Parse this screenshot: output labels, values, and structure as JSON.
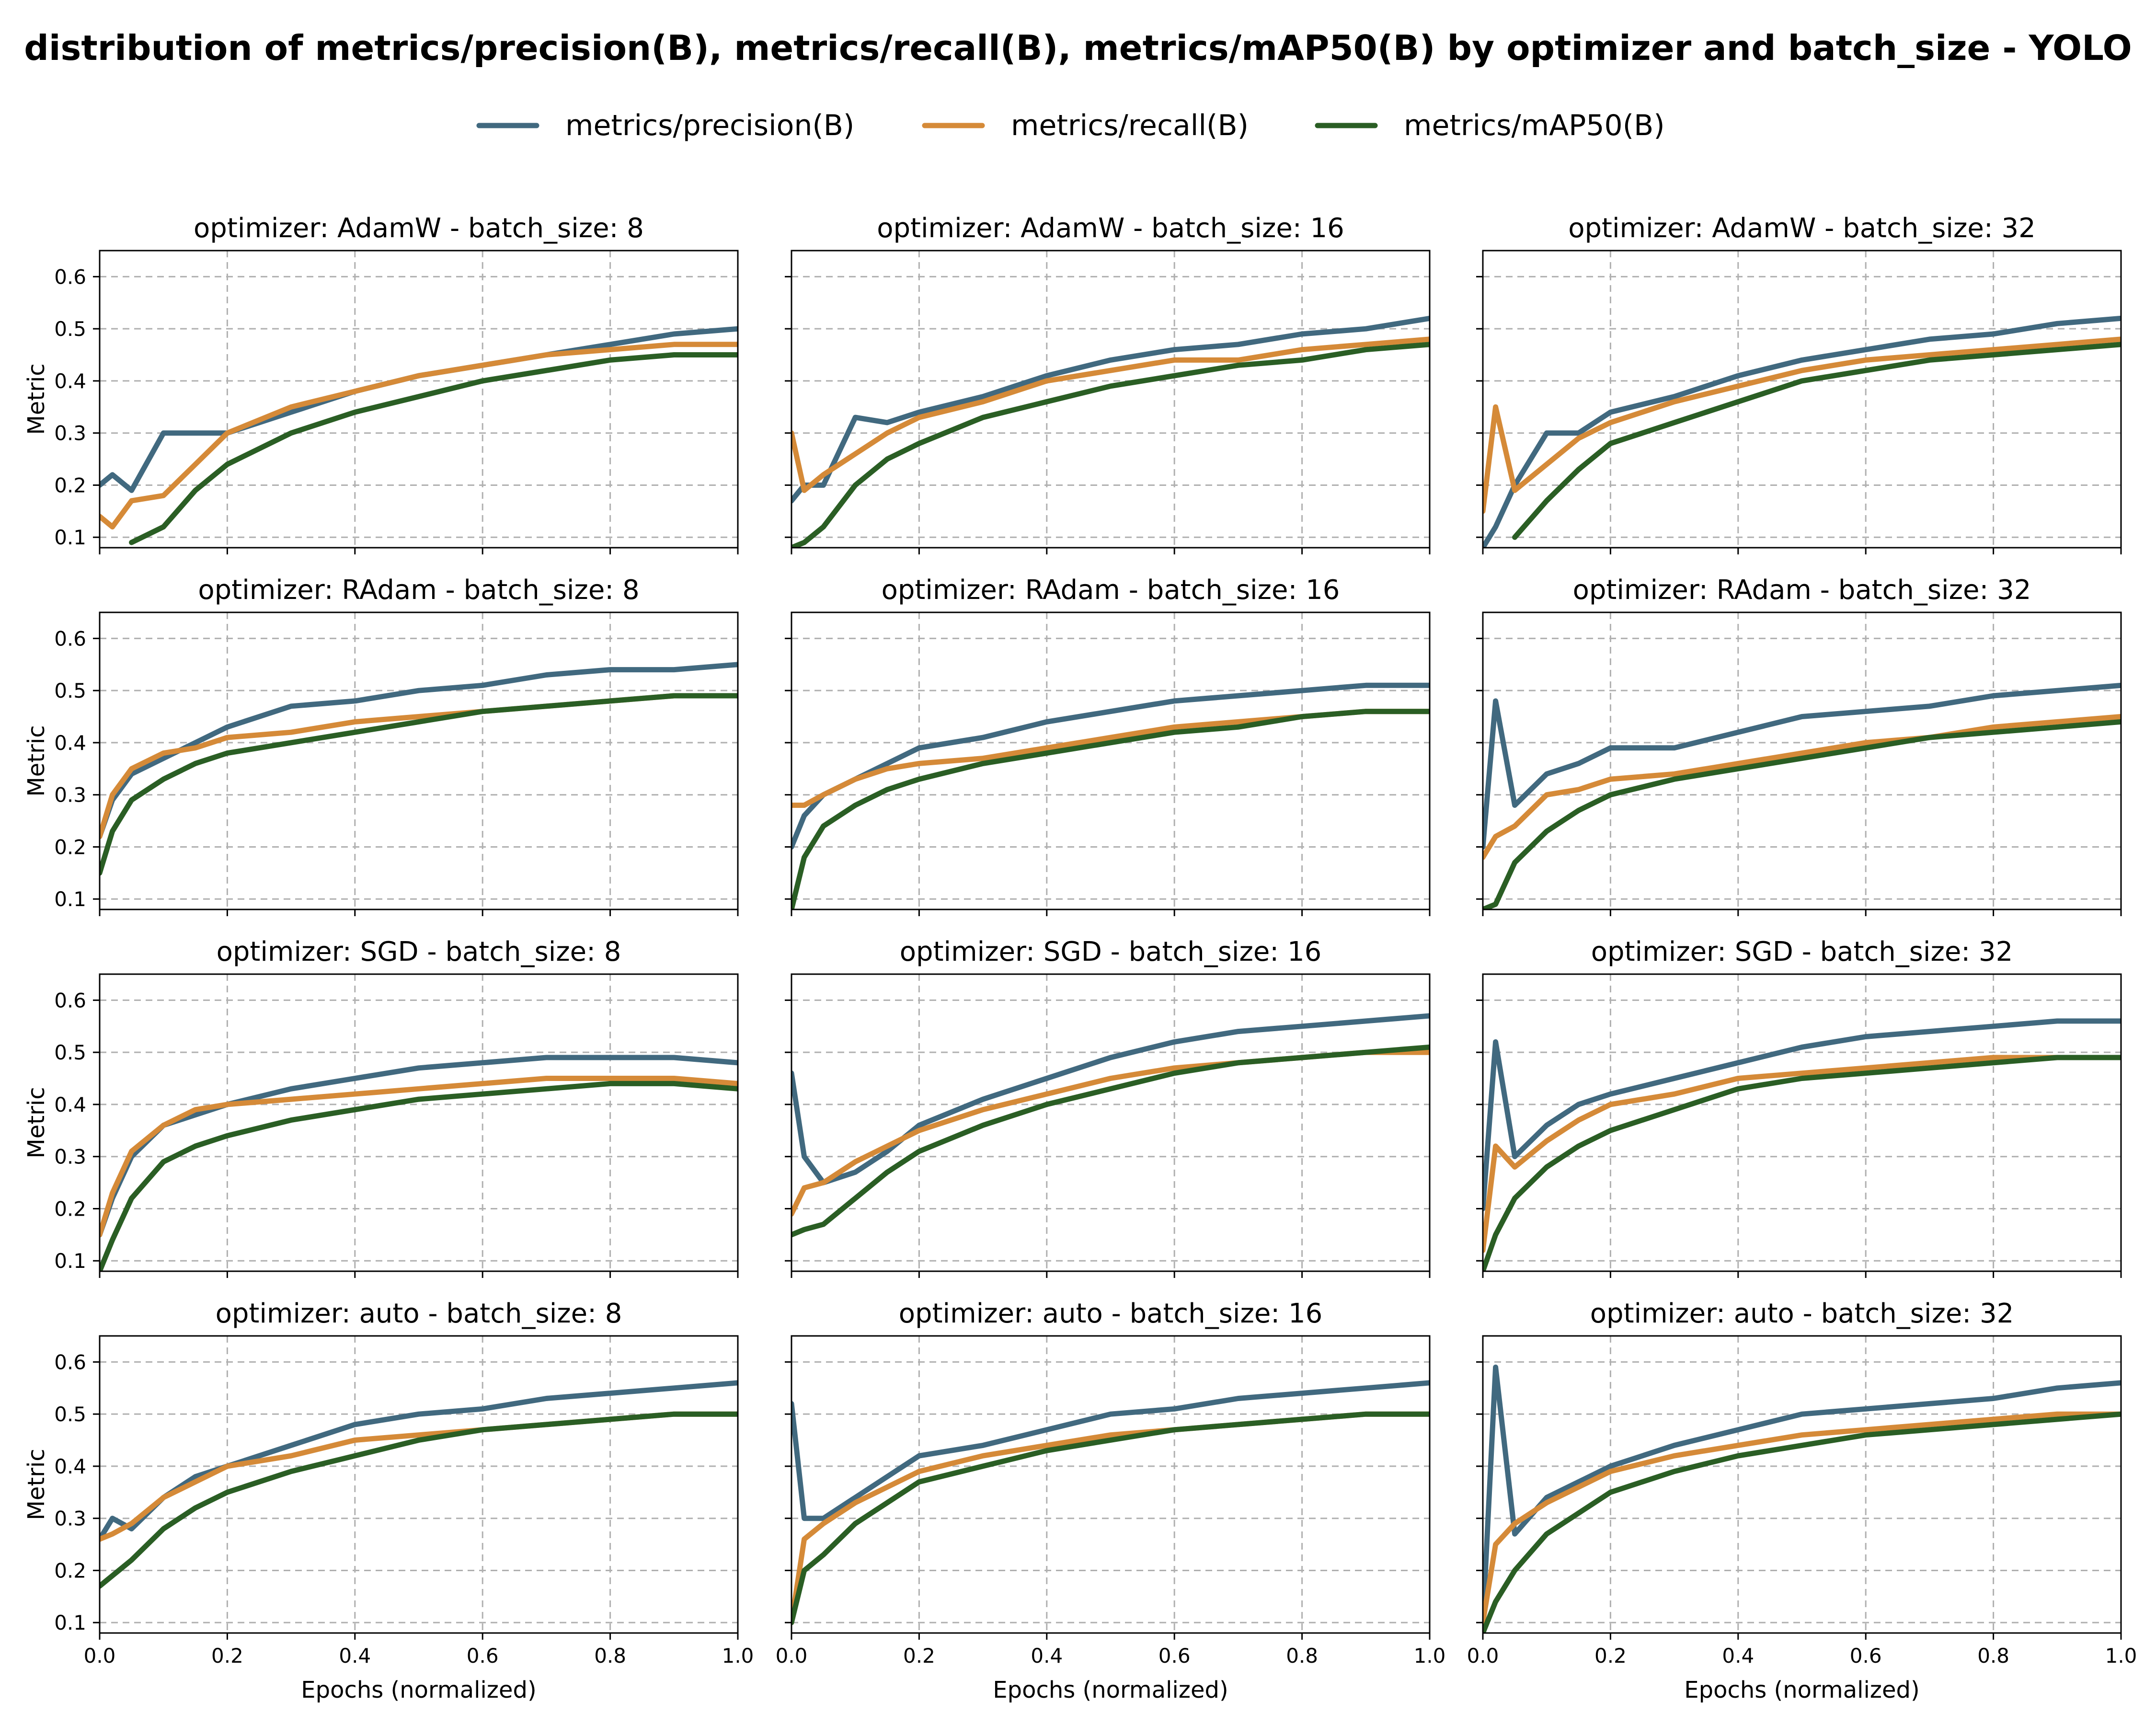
{
  "figure": {
    "title": "distribution of metrics/precision(B), metrics/recall(B), metrics/mAP50(B) by optimizer and batch_size - YOLO"
  },
  "chart_data": {
    "type": "line",
    "title": "distribution of metrics/precision(B), metrics/recall(B), metrics/mAP50(B) by optimizer and batch_size - YOLO",
    "xlabel": "Epochs (normalized)",
    "ylabel": "Metric",
    "xlim": [
      0.0,
      1.0
    ],
    "ylim": [
      0.08,
      0.65
    ],
    "x_ticks": [
      "0.0",
      "0.2",
      "0.4",
      "0.6",
      "0.8",
      "1.0"
    ],
    "y_ticks": [
      "0.1",
      "0.2",
      "0.3",
      "0.4",
      "0.5",
      "0.6"
    ],
    "grid": true,
    "legend_position": "top-center",
    "legend": [
      {
        "name": "metrics/precision(B)",
        "color": "#41697f"
      },
      {
        "name": "metrics/recall(B)",
        "color": "#d58a38"
      },
      {
        "name": "metrics/mAP50(B)",
        "color": "#2a5e24"
      }
    ],
    "x": [
      0.0,
      0.02,
      0.05,
      0.1,
      0.15,
      0.2,
      0.3,
      0.4,
      0.5,
      0.6,
      0.7,
      0.8,
      0.9,
      1.0
    ],
    "panels": [
      {
        "title": "optimizer: AdamW - batch_size: 8",
        "series": [
          {
            "name": "metrics/precision(B)",
            "values": [
              0.2,
              0.22,
              0.19,
              0.3,
              0.3,
              0.3,
              0.34,
              0.38,
              0.41,
              0.43,
              0.45,
              0.47,
              0.49,
              0.5
            ]
          },
          {
            "name": "metrics/recall(B)",
            "values": [
              0.14,
              0.12,
              0.17,
              0.18,
              0.24,
              0.3,
              0.35,
              0.38,
              0.41,
              0.43,
              0.45,
              0.46,
              0.47,
              0.47
            ]
          },
          {
            "name": "metrics/mAP50(B)",
            "values": [
              null,
              null,
              0.09,
              0.12,
              0.19,
              0.24,
              0.3,
              0.34,
              0.37,
              0.4,
              0.42,
              0.44,
              0.45,
              0.45
            ]
          }
        ]
      },
      {
        "title": "optimizer: AdamW - batch_size: 16",
        "series": [
          {
            "name": "metrics/precision(B)",
            "values": [
              0.17,
              0.2,
              0.2,
              0.33,
              0.32,
              0.34,
              0.37,
              0.41,
              0.44,
              0.46,
              0.47,
              0.49,
              0.5,
              0.52
            ]
          },
          {
            "name": "metrics/recall(B)",
            "values": [
              0.3,
              0.19,
              0.22,
              0.26,
              0.3,
              0.33,
              0.36,
              0.4,
              0.42,
              0.44,
              0.44,
              0.46,
              0.47,
              0.48
            ]
          },
          {
            "name": "metrics/mAP50(B)",
            "values": [
              0.08,
              0.09,
              0.12,
              0.2,
              0.25,
              0.28,
              0.33,
              0.36,
              0.39,
              0.41,
              0.43,
              0.44,
              0.46,
              0.47
            ]
          }
        ]
      },
      {
        "title": "optimizer: AdamW - batch_size: 32",
        "series": [
          {
            "name": "metrics/precision(B)",
            "values": [
              0.08,
              0.12,
              0.2,
              0.3,
              0.3,
              0.34,
              0.37,
              0.41,
              0.44,
              0.46,
              0.48,
              0.49,
              0.51,
              0.52
            ]
          },
          {
            "name": "metrics/recall(B)",
            "values": [
              0.15,
              0.35,
              0.19,
              0.24,
              0.29,
              0.32,
              0.36,
              0.39,
              0.42,
              0.44,
              0.45,
              0.46,
              0.47,
              0.48
            ]
          },
          {
            "name": "metrics/mAP50(B)",
            "values": [
              null,
              null,
              0.1,
              0.17,
              0.23,
              0.28,
              0.32,
              0.36,
              0.4,
              0.42,
              0.44,
              0.45,
              0.46,
              0.47
            ]
          }
        ]
      },
      {
        "title": "optimizer: RAdam - batch_size: 8",
        "series": [
          {
            "name": "metrics/precision(B)",
            "values": [
              0.22,
              0.29,
              0.34,
              0.37,
              0.4,
              0.43,
              0.47,
              0.48,
              0.5,
              0.51,
              0.53,
              0.54,
              0.54,
              0.55
            ]
          },
          {
            "name": "metrics/recall(B)",
            "values": [
              0.22,
              0.3,
              0.35,
              0.38,
              0.39,
              0.41,
              0.42,
              0.44,
              0.45,
              0.46,
              0.47,
              0.48,
              0.49,
              0.49
            ]
          },
          {
            "name": "metrics/mAP50(B)",
            "values": [
              0.15,
              0.23,
              0.29,
              0.33,
              0.36,
              0.38,
              0.4,
              0.42,
              0.44,
              0.46,
              0.47,
              0.48,
              0.49,
              0.49
            ]
          }
        ]
      },
      {
        "title": "optimizer: RAdam - batch_size: 16",
        "series": [
          {
            "name": "metrics/precision(B)",
            "values": [
              0.2,
              0.26,
              0.3,
              0.33,
              0.36,
              0.39,
              0.41,
              0.44,
              0.46,
              0.48,
              0.49,
              0.5,
              0.51,
              0.51
            ]
          },
          {
            "name": "metrics/recall(B)",
            "values": [
              0.28,
              0.28,
              0.3,
              0.33,
              0.35,
              0.36,
              0.37,
              0.39,
              0.41,
              0.43,
              0.44,
              0.45,
              0.46,
              0.46
            ]
          },
          {
            "name": "metrics/mAP50(B)",
            "values": [
              0.08,
              0.18,
              0.24,
              0.28,
              0.31,
              0.33,
              0.36,
              0.38,
              0.4,
              0.42,
              0.43,
              0.45,
              0.46,
              0.46
            ]
          }
        ]
      },
      {
        "title": "optimizer: RAdam - batch_size: 32",
        "series": [
          {
            "name": "metrics/precision(B)",
            "values": [
              0.2,
              0.48,
              0.28,
              0.34,
              0.36,
              0.39,
              0.39,
              0.42,
              0.45,
              0.46,
              0.47,
              0.49,
              0.5,
              0.51
            ]
          },
          {
            "name": "metrics/recall(B)",
            "values": [
              0.18,
              0.22,
              0.24,
              0.3,
              0.31,
              0.33,
              0.34,
              0.36,
              0.38,
              0.4,
              0.41,
              0.43,
              0.44,
              0.45
            ]
          },
          {
            "name": "metrics/mAP50(B)",
            "values": [
              0.08,
              0.09,
              0.17,
              0.23,
              0.27,
              0.3,
              0.33,
              0.35,
              0.37,
              0.39,
              0.41,
              0.42,
              0.43,
              0.44
            ]
          }
        ]
      },
      {
        "title": "optimizer: SGD - batch_size: 8",
        "series": [
          {
            "name": "metrics/precision(B)",
            "values": [
              0.15,
              0.22,
              0.3,
              0.36,
              0.38,
              0.4,
              0.43,
              0.45,
              0.47,
              0.48,
              0.49,
              0.49,
              0.49,
              0.48
            ]
          },
          {
            "name": "metrics/recall(B)",
            "values": [
              0.15,
              0.23,
              0.31,
              0.36,
              0.39,
              0.4,
              0.41,
              0.42,
              0.43,
              0.44,
              0.45,
              0.45,
              0.45,
              0.44
            ]
          },
          {
            "name": "metrics/mAP50(B)",
            "values": [
              0.08,
              0.14,
              0.22,
              0.29,
              0.32,
              0.34,
              0.37,
              0.39,
              0.41,
              0.42,
              0.43,
              0.44,
              0.44,
              0.43
            ]
          }
        ]
      },
      {
        "title": "optimizer: SGD - batch_size: 16",
        "series": [
          {
            "name": "metrics/precision(B)",
            "values": [
              0.46,
              0.3,
              0.25,
              0.27,
              0.31,
              0.36,
              0.41,
              0.45,
              0.49,
              0.52,
              0.54,
              0.55,
              0.56,
              0.57
            ]
          },
          {
            "name": "metrics/recall(B)",
            "values": [
              0.19,
              0.24,
              0.25,
              0.29,
              0.32,
              0.35,
              0.39,
              0.42,
              0.45,
              0.47,
              0.48,
              0.49,
              0.5,
              0.5
            ]
          },
          {
            "name": "metrics/mAP50(B)",
            "values": [
              0.15,
              0.16,
              0.17,
              0.22,
              0.27,
              0.31,
              0.36,
              0.4,
              0.43,
              0.46,
              0.48,
              0.49,
              0.5,
              0.51
            ]
          }
        ]
      },
      {
        "title": "optimizer: SGD - batch_size: 32",
        "series": [
          {
            "name": "metrics/precision(B)",
            "values": [
              0.2,
              0.52,
              0.3,
              0.36,
              0.4,
              0.42,
              0.45,
              0.48,
              0.51,
              0.53,
              0.54,
              0.55,
              0.56,
              0.56
            ]
          },
          {
            "name": "metrics/recall(B)",
            "values": [
              0.12,
              0.32,
              0.28,
              0.33,
              0.37,
              0.4,
              0.42,
              0.45,
              0.46,
              0.47,
              0.48,
              0.49,
              0.49,
              0.49
            ]
          },
          {
            "name": "metrics/mAP50(B)",
            "values": [
              0.08,
              0.15,
              0.22,
              0.28,
              0.32,
              0.35,
              0.39,
              0.43,
              0.45,
              0.46,
              0.47,
              0.48,
              0.49,
              0.49
            ]
          }
        ]
      },
      {
        "title": "optimizer: auto - batch_size: 8",
        "series": [
          {
            "name": "metrics/precision(B)",
            "values": [
              0.26,
              0.3,
              0.28,
              0.34,
              0.38,
              0.4,
              0.44,
              0.48,
              0.5,
              0.51,
              0.53,
              0.54,
              0.55,
              0.56
            ]
          },
          {
            "name": "metrics/recall(B)",
            "values": [
              0.26,
              0.27,
              0.29,
              0.34,
              0.37,
              0.4,
              0.42,
              0.45,
              0.46,
              0.47,
              0.48,
              0.49,
              0.5,
              0.5
            ]
          },
          {
            "name": "metrics/mAP50(B)",
            "values": [
              0.17,
              0.19,
              0.22,
              0.28,
              0.32,
              0.35,
              0.39,
              0.42,
              0.45,
              0.47,
              0.48,
              0.49,
              0.5,
              0.5
            ]
          }
        ]
      },
      {
        "title": "optimizer: auto - batch_size: 16",
        "series": [
          {
            "name": "metrics/precision(B)",
            "values": [
              0.52,
              0.3,
              0.3,
              0.34,
              0.38,
              0.42,
              0.44,
              0.47,
              0.5,
              0.51,
              0.53,
              0.54,
              0.55,
              0.56
            ]
          },
          {
            "name": "metrics/recall(B)",
            "values": [
              0.1,
              0.26,
              0.29,
              0.33,
              0.36,
              0.39,
              0.42,
              0.44,
              0.46,
              0.47,
              0.48,
              0.49,
              0.5,
              0.5
            ]
          },
          {
            "name": "metrics/mAP50(B)",
            "values": [
              0.1,
              0.2,
              0.23,
              0.29,
              0.33,
              0.37,
              0.4,
              0.43,
              0.45,
              0.47,
              0.48,
              0.49,
              0.5,
              0.5
            ]
          }
        ]
      },
      {
        "title": "optimizer: auto - batch_size: 32",
        "series": [
          {
            "name": "metrics/precision(B)",
            "values": [
              0.1,
              0.59,
              0.27,
              0.34,
              0.37,
              0.4,
              0.44,
              0.47,
              0.5,
              0.51,
              0.52,
              0.53,
              0.55,
              0.56
            ]
          },
          {
            "name": "metrics/recall(B)",
            "values": [
              0.1,
              0.25,
              0.29,
              0.33,
              0.36,
              0.39,
              0.42,
              0.44,
              0.46,
              0.47,
              0.48,
              0.49,
              0.5,
              0.5
            ]
          },
          {
            "name": "metrics/mAP50(B)",
            "values": [
              0.08,
              0.14,
              0.2,
              0.27,
              0.31,
              0.35,
              0.39,
              0.42,
              0.44,
              0.46,
              0.47,
              0.48,
              0.49,
              0.5
            ]
          }
        ]
      }
    ]
  }
}
